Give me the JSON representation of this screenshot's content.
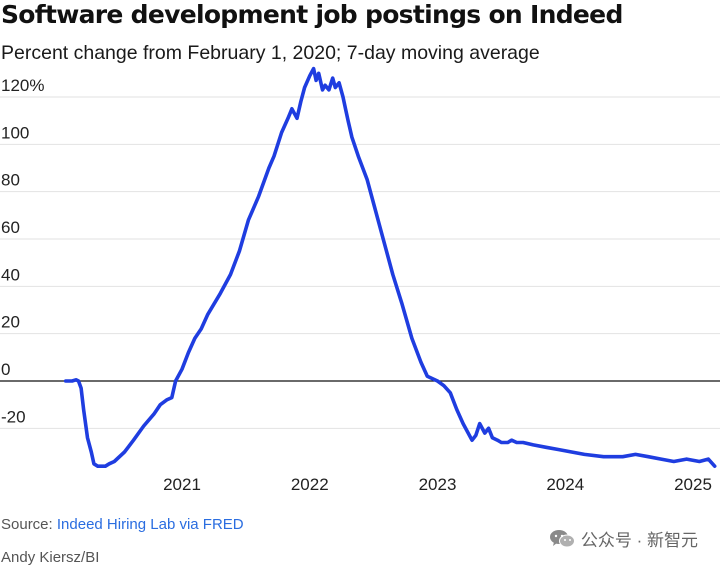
{
  "chart_data": {
    "type": "line",
    "title": "Software development job postings on Indeed",
    "subtitle": "Percent change from February 1, 2020; 7-day moving average",
    "y_ticks": [
      {
        "value": 120,
        "label": "120%"
      },
      {
        "value": 100,
        "label": "100"
      },
      {
        "value": 80,
        "label": "80"
      },
      {
        "value": 60,
        "label": "60"
      },
      {
        "value": 40,
        "label": "40"
      },
      {
        "value": 20,
        "label": "20"
      },
      {
        "value": 0,
        "label": "0"
      },
      {
        "value": -20,
        "label": "-20"
      }
    ],
    "x_ticks": [
      {
        "value": 2021,
        "label": "2021"
      },
      {
        "value": 2022,
        "label": "2022"
      },
      {
        "value": 2023,
        "label": "2023"
      },
      {
        "value": 2024,
        "label": "2024"
      },
      {
        "value": 2025,
        "label": "2025"
      }
    ],
    "xlim": [
      2019.85,
      2025.2
    ],
    "ylim": [
      -40,
      132
    ],
    "grid": true,
    "series": [
      {
        "color": "#1f3de0",
        "x": [
          2020.09,
          2020.14,
          2020.17,
          2020.19,
          2020.21,
          2020.23,
          2020.26,
          2020.29,
          2020.31,
          2020.34,
          2020.37,
          2020.4,
          2020.43,
          2020.47,
          2020.55,
          2020.62,
          2020.7,
          2020.78,
          2020.83,
          2020.88,
          2020.92,
          2020.95,
          2021.0,
          2021.05,
          2021.1,
          2021.15,
          2021.2,
          2021.3,
          2021.38,
          2021.45,
          2021.52,
          2021.6,
          2021.68,
          2021.72,
          2021.78,
          2021.83,
          2021.86,
          2021.9,
          2021.93,
          2021.96,
          2022.0,
          2022.03,
          2022.05,
          2022.07,
          2022.1,
          2022.12,
          2022.15,
          2022.18,
          2022.2,
          2022.23,
          2022.26,
          2022.28,
          2022.3,
          2022.33,
          2022.38,
          2022.45,
          2022.5,
          2022.55,
          2022.6,
          2022.65,
          2022.72,
          2022.8,
          2022.87,
          2022.92,
          2023.0,
          2023.05,
          2023.1,
          2023.15,
          2023.2,
          2023.27,
          2023.3,
          2023.33,
          2023.37,
          2023.4,
          2023.43,
          2023.47,
          2023.5,
          2023.55,
          2023.58,
          2023.62,
          2023.67,
          2023.75,
          2023.85,
          2023.95,
          2024.05,
          2024.15,
          2024.3,
          2024.45,
          2024.55,
          2024.65,
          2024.75,
          2024.85,
          2024.95,
          2025.05,
          2025.12,
          2025.17
        ],
        "values": [
          0,
          0,
          0.5,
          0,
          -3,
          -12,
          -24,
          -30,
          -35,
          -36,
          -36,
          -36,
          -35,
          -34,
          -30,
          -25,
          -19,
          -14,
          -10,
          -8,
          -7,
          0,
          5,
          12,
          18,
          22,
          28,
          37,
          45,
          55,
          68,
          78,
          90,
          95,
          105,
          111,
          115,
          111,
          118,
          124,
          129,
          132,
          127,
          130,
          123,
          125,
          123,
          128,
          124,
          126,
          120,
          115,
          110,
          103,
          95,
          85,
          75,
          65,
          55,
          45,
          33,
          18,
          8,
          2,
          0,
          -2,
          -5,
          -12,
          -18,
          -25,
          -23,
          -18,
          -22,
          -20,
          -24,
          -25,
          -26,
          -26,
          -25,
          -26,
          -26,
          -27,
          -28,
          -29,
          -30,
          -31,
          -32,
          -32,
          -31,
          -32,
          -33,
          -34,
          -33,
          -34,
          -33,
          -36
        ]
      }
    ],
    "source_prefix": "Source: ",
    "source_link": "Indeed Hiring Lab via FRED",
    "credit": "Andy Kiersz/BI"
  },
  "watermark": {
    "text": "公众号 · 新智元",
    "icon": "wechat-icon"
  }
}
